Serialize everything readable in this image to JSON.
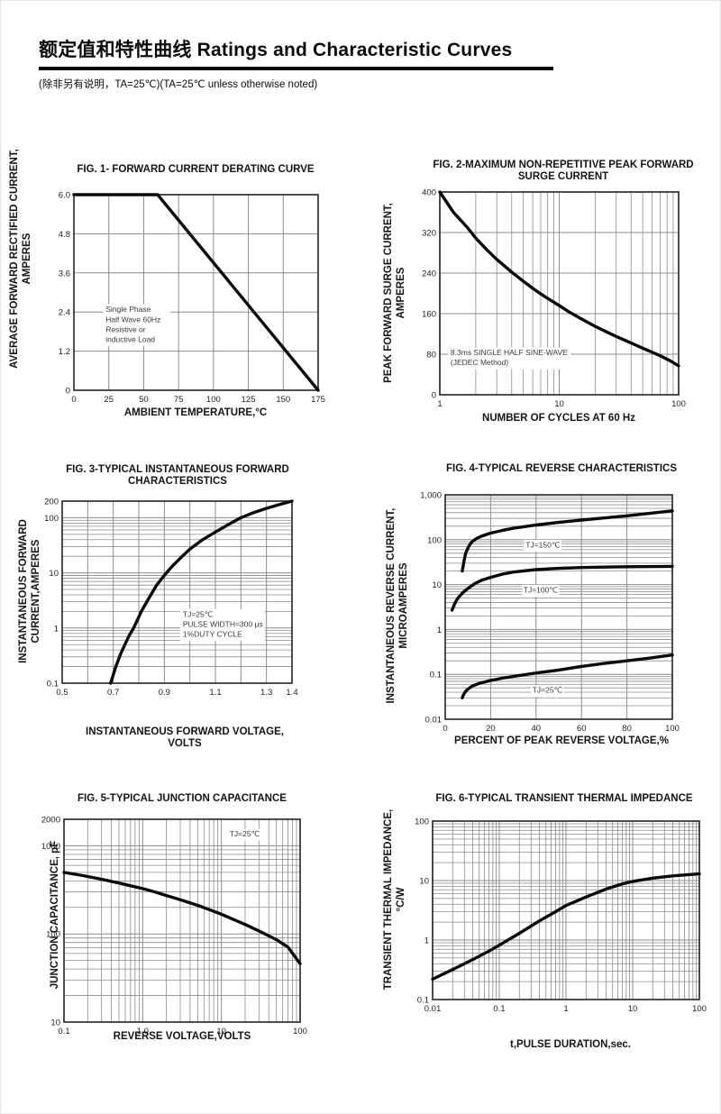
{
  "page": {
    "title": "额定值和特性曲线 Ratings and Characteristic Curves",
    "subtitle": "(除非另有说明，TA=25℃)(TA=25℃  unless otherwise noted)"
  },
  "colors": {
    "curve": "#0a0a0a",
    "grid": "#8c8c8c",
    "frame": "#222222",
    "text": "#151515"
  },
  "chart_data": [
    {
      "id": "fig1",
      "type": "line",
      "title": "FIG. 1- FORWARD CURRENT DERATING CURVE",
      "xlabel": "AMBIENT TEMPERATURE,°C",
      "ylabel": "AVERAGE FORWARD RECTIFIED CURRENT,\nAMPERES",
      "x": {
        "scale": "linear",
        "min": 0,
        "max": 175,
        "ticks": [
          [
            0,
            "0"
          ],
          [
            25,
            "25"
          ],
          [
            50,
            "50"
          ],
          [
            75,
            "75"
          ],
          [
            100,
            "100"
          ],
          [
            125,
            "125"
          ],
          [
            150,
            "150"
          ],
          [
            175,
            "175"
          ]
        ]
      },
      "y": {
        "scale": "linear",
        "min": 0,
        "max": 6,
        "ticks": [
          [
            6,
            "6.0"
          ],
          [
            4.8,
            "4.8"
          ],
          [
            3.6,
            "3.6"
          ],
          [
            2.4,
            "2.4"
          ],
          [
            1.2,
            "1.2"
          ],
          [
            0,
            "0"
          ]
        ]
      },
      "series": [
        {
          "name": "forward-current-derating",
          "points": [
            [
              0,
              6
            ],
            [
              60,
              6
            ],
            [
              175,
              0
            ]
          ]
        }
      ],
      "annotations": [
        {
          "text": "Single Phase\nHalf Wave 60Hz\nResistive or\ninductive Load",
          "fx": 0.13,
          "fy": 0.6,
          "anchor": "start"
        }
      ]
    },
    {
      "id": "fig2",
      "type": "line",
      "title": "FIG. 2-MAXIMUM NON-REPETITIVE PEAK FORWARD\nSURGE CURRENT",
      "xlabel": "NUMBER OF CYCLES AT 60 Hz",
      "ylabel": "PEAK  FORWARD SURGE CURRENT,\nAMPERES",
      "x": {
        "scale": "log",
        "min": 1,
        "max": 100,
        "ticks": [
          [
            1,
            "1"
          ],
          [
            10,
            "10"
          ],
          [
            100,
            "100"
          ]
        ]
      },
      "y": {
        "scale": "linear",
        "min": 0,
        "max": 400,
        "ticks": [
          [
            400,
            "400"
          ],
          [
            320,
            "320"
          ],
          [
            240,
            "240"
          ],
          [
            160,
            "160"
          ],
          [
            80,
            "80"
          ],
          [
            0,
            "0"
          ]
        ]
      },
      "series": [
        {
          "name": "peak-surge-current",
          "points": [
            [
              1,
              400
            ],
            [
              1.3,
              360
            ],
            [
              1.7,
              330
            ],
            [
              2,
              309
            ],
            [
              2.5,
              285
            ],
            [
              3,
              267
            ],
            [
              4,
              242
            ],
            [
              5,
              224
            ],
            [
              6,
              210
            ],
            [
              7,
              199
            ],
            [
              8,
              190
            ],
            [
              10,
              176
            ],
            [
              12,
              164
            ],
            [
              15,
              151
            ],
            [
              20,
              135
            ],
            [
              25,
              124
            ],
            [
              30,
              115
            ],
            [
              40,
              102
            ],
            [
              50,
              92
            ],
            [
              60,
              84
            ],
            [
              70,
              77
            ],
            [
              85,
              67
            ],
            [
              100,
              57
            ]
          ]
        }
      ],
      "annotations": [
        {
          "text": "8.3ms SINGLE HALF SINE-WAVE\n(JEDEC Method)",
          "fx": 0.045,
          "fy": 0.805,
          "anchor": "start"
        }
      ]
    },
    {
      "id": "fig3",
      "type": "line",
      "title": "FIG. 3-TYPICAL INSTANTANEOUS FORWARD\nCHARACTERISTICS",
      "xlabel": "INSTANTANEOUS FORWARD VOLTAGE,\nVOLTS",
      "ylabel": "INSTANTANEOUS FORWARD\nCURRENT,AMPERES",
      "x": {
        "scale": "linear",
        "min": 0.5,
        "max": 1.4,
        "grid": [
          0.5,
          0.6,
          0.7,
          0.8,
          0.9,
          1.0,
          1.1,
          1.2,
          1.3,
          1.4
        ],
        "ticks": [
          [
            0.5,
            "0.5"
          ],
          [
            0.7,
            "0.7"
          ],
          [
            0.9,
            "0.9"
          ],
          [
            1.1,
            "1.1"
          ],
          [
            1.3,
            "1.3"
          ],
          [
            1.4,
            "1.4"
          ]
        ]
      },
      "y": {
        "scale": "log",
        "min": 0.1,
        "max": 200,
        "ticks": [
          [
            200,
            "200"
          ],
          [
            100,
            "100"
          ],
          [
            10,
            "10"
          ],
          [
            1,
            "1"
          ],
          [
            0.1,
            "0.1"
          ]
        ]
      },
      "series": [
        {
          "name": "instantaneous-forward-current",
          "points": [
            [
              0.69,
              0.1
            ],
            [
              0.71,
              0.2
            ],
            [
              0.73,
              0.35
            ],
            [
              0.76,
              0.7
            ],
            [
              0.78,
              1
            ],
            [
              0.81,
              2
            ],
            [
              0.84,
              3.5
            ],
            [
              0.87,
              6
            ],
            [
              0.9,
              9
            ],
            [
              0.93,
              13
            ],
            [
              0.97,
              20
            ],
            [
              1.0,
              27
            ],
            [
              1.05,
              40
            ],
            [
              1.1,
              55
            ],
            [
              1.15,
              75
            ],
            [
              1.2,
              100
            ],
            [
              1.25,
              124
            ],
            [
              1.3,
              148
            ],
            [
              1.35,
              173
            ],
            [
              1.4,
              200
            ]
          ]
        }
      ],
      "annotations": [
        {
          "text": "TJ=25℃\nPULSE WIDTH=300 μs\n1%DUTY CYCLE",
          "fx": 0.525,
          "fy": 0.635,
          "anchor": "start"
        }
      ]
    },
    {
      "id": "fig4",
      "type": "line",
      "title": "FIG. 4-TYPICAL REVERSE CHARACTERISTICS",
      "xlabel": "PERCENT OF PEAK REVERSE VOLTAGE,%",
      "ylabel": "INSTANTANEOUS REVERSE CURRENT,\nMICROAMPERES",
      "x": {
        "scale": "linear",
        "min": 0,
        "max": 100,
        "ticks": [
          [
            0,
            "0"
          ],
          [
            20,
            "20"
          ],
          [
            40,
            "40"
          ],
          [
            60,
            "60"
          ],
          [
            80,
            "80"
          ],
          [
            100,
            "100"
          ]
        ]
      },
      "y": {
        "scale": "log",
        "min": 0.01,
        "max": 1000,
        "ticks": [
          [
            1000,
            "1,000"
          ],
          [
            100,
            "100"
          ],
          [
            10,
            "10"
          ],
          [
            1,
            "1"
          ],
          [
            0.1,
            "0.1"
          ],
          [
            0.01,
            "0.01"
          ]
        ]
      },
      "series": [
        {
          "name": "TJ=150℃",
          "points": [
            [
              7.5,
              20
            ],
            [
              8,
              28
            ],
            [
              8.5,
              38
            ],
            [
              9,
              50
            ],
            [
              10,
              65
            ],
            [
              11,
              80
            ],
            [
              12,
              92
            ],
            [
              14,
              108
            ],
            [
              16,
              120
            ],
            [
              20,
              140
            ],
            [
              25,
              160
            ],
            [
              30,
              180
            ],
            [
              40,
              212
            ],
            [
              50,
              243
            ],
            [
              60,
              274
            ],
            [
              70,
              305
            ],
            [
              80,
              340
            ],
            [
              90,
              385
            ],
            [
              100,
              440
            ]
          ]
        },
        {
          "name": "TJ=100℃",
          "points": [
            [
              3,
              2.7
            ],
            [
              4,
              3.6
            ],
            [
              5,
              4.5
            ],
            [
              6,
              5.3
            ],
            [
              8,
              6.8
            ],
            [
              10,
              8.2
            ],
            [
              13,
              10.5
            ],
            [
              16,
              12.5
            ],
            [
              20,
              14.5
            ],
            [
              25,
              17
            ],
            [
              30,
              19
            ],
            [
              40,
              21.5
            ],
            [
              50,
              23
            ],
            [
              60,
              24
            ],
            [
              70,
              24.5
            ],
            [
              80,
              25
            ],
            [
              100,
              25.5
            ]
          ]
        },
        {
          "name": "TJ=25℃",
          "points": [
            [
              7.5,
              0.03
            ],
            [
              8,
              0.035
            ],
            [
              9,
              0.042
            ],
            [
              10,
              0.047
            ],
            [
              12,
              0.055
            ],
            [
              15,
              0.063
            ],
            [
              20,
              0.073
            ],
            [
              25,
              0.082
            ],
            [
              30,
              0.09
            ],
            [
              40,
              0.107
            ],
            [
              50,
              0.125
            ],
            [
              60,
              0.15
            ],
            [
              70,
              0.175
            ],
            [
              80,
              0.2
            ],
            [
              90,
              0.23
            ],
            [
              100,
              0.27
            ]
          ]
        }
      ],
      "annotations": [
        {
          "text": "TJ=150℃",
          "fx": 0.43,
          "fy": 0.235,
          "anchor": "middle"
        },
        {
          "text": "TJ=100℃",
          "fx": 0.42,
          "fy": 0.435,
          "anchor": "middle"
        },
        {
          "text": "TJ=25℃",
          "fx": 0.45,
          "fy": 0.882,
          "anchor": "middle"
        }
      ]
    },
    {
      "id": "fig5",
      "type": "line",
      "title": "FIG. 5-TYPICAL JUNCTION CAPACITANCE",
      "xlabel": "REVERSE VOLTAGE,VOLTS",
      "ylabel": "JUNCTION CAPACITANCE, pF",
      "x": {
        "scale": "log",
        "min": 0.1,
        "max": 100,
        "ticks": [
          [
            0.1,
            "0.1"
          ],
          [
            1,
            "1.0"
          ],
          [
            10,
            "10"
          ],
          [
            100,
            "100"
          ]
        ]
      },
      "y": {
        "scale": "log",
        "min": 10,
        "max": 2000,
        "ticks": [
          [
            2000,
            "2000"
          ],
          [
            1000,
            "1000"
          ],
          [
            100,
            "100"
          ],
          [
            10,
            "10"
          ]
        ]
      },
      "series": [
        {
          "name": "junction-capacitance",
          "points": [
            [
              0.1,
              500
            ],
            [
              0.15,
              470
            ],
            [
              0.2,
              448
            ],
            [
              0.3,
              417
            ],
            [
              0.5,
              378
            ],
            [
              0.7,
              352
            ],
            [
              1,
              327
            ],
            [
              1.5,
              296
            ],
            [
              2,
              273
            ],
            [
              3,
              244
            ],
            [
              5,
              211
            ],
            [
              7,
              189
            ],
            [
              10,
              167
            ],
            [
              15,
              143
            ],
            [
              20,
              128
            ],
            [
              30,
              108
            ],
            [
              50,
              86
            ],
            [
              70,
              71
            ],
            [
              100,
              46
            ]
          ]
        }
      ],
      "annotations": [
        {
          "text": "TJ=25℃",
          "fx": 0.765,
          "fy": 0.085,
          "anchor": "middle"
        }
      ]
    },
    {
      "id": "fig6",
      "type": "line",
      "title": "FIG. 6-TYPICAL TRANSIENT THERMAL IMPEDANCE",
      "xlabel": "t,PULSE DURATION,sec.",
      "ylabel": "TRANSIENT THERMAL IMPEDANCE,\n°C/W",
      "x": {
        "scale": "log",
        "min": 0.01,
        "max": 100,
        "ticks": [
          [
            0.01,
            "0.01"
          ],
          [
            0.1,
            "0.1"
          ],
          [
            1,
            "1"
          ],
          [
            10,
            "10"
          ],
          [
            100,
            "100"
          ]
        ]
      },
      "y": {
        "scale": "log",
        "min": 0.1,
        "max": 100,
        "ticks": [
          [
            100,
            "100"
          ],
          [
            10,
            "10"
          ],
          [
            1,
            "1"
          ],
          [
            0.1,
            "0.1"
          ]
        ]
      },
      "series": [
        {
          "name": "transient-thermal-impedance",
          "points": [
            [
              0.01,
              0.22
            ],
            [
              0.02,
              0.32
            ],
            [
              0.04,
              0.47
            ],
            [
              0.07,
              0.65
            ],
            [
              0.1,
              0.82
            ],
            [
              0.2,
              1.3
            ],
            [
              0.4,
              2.1
            ],
            [
              0.7,
              3.0
            ],
            [
              1,
              3.8
            ],
            [
              2,
              5.3
            ],
            [
              4,
              7.2
            ],
            [
              7,
              8.8
            ],
            [
              10,
              9.7
            ],
            [
              20,
              11
            ],
            [
              40,
              12
            ],
            [
              70,
              12.6
            ],
            [
              100,
              13
            ]
          ]
        }
      ],
      "annotations": []
    }
  ]
}
